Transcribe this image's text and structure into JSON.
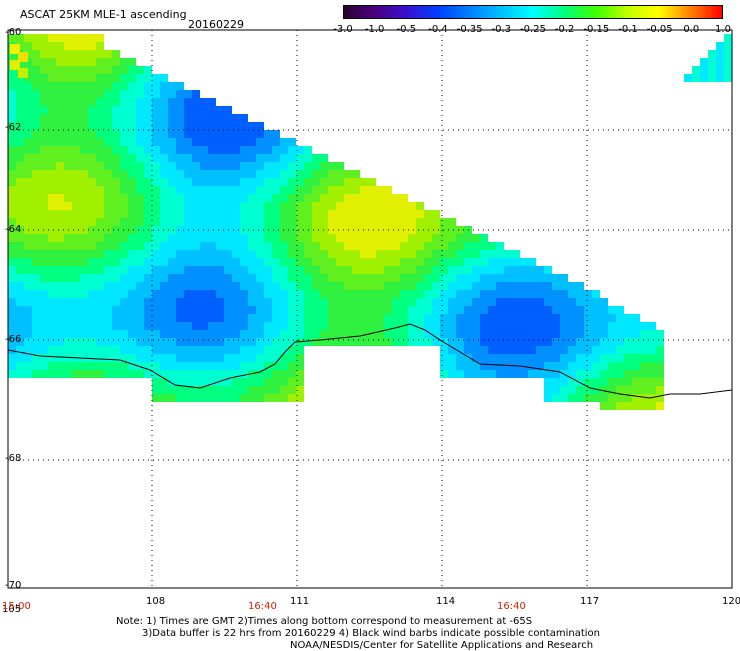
{
  "header": {
    "title": "ASCAT 25KM MLE-1 ascending",
    "date": "20160229"
  },
  "colorbar": {
    "labels": [
      "-3.0",
      "-1.0",
      "-0.5",
      "-0.4",
      "-0.35",
      "-0.3",
      "-0.25",
      "-0.2",
      "-0.15",
      "-0.1",
      "-0.05",
      "0.0",
      "1.0"
    ],
    "colors": [
      "#2a0030",
      "#4a0080",
      "#3a10d0",
      "#0040ff",
      "#0080ff",
      "#00c0ff",
      "#00ffff",
      "#00ff80",
      "#40ff00",
      "#c0ff00",
      "#ffff00",
      "#ff8000",
      "#ff0000"
    ]
  },
  "axes": {
    "lon_ticks": [
      "105",
      "108",
      "111",
      "114",
      "117",
      "120"
    ],
    "lat_ticks": [
      "-60",
      "-62",
      "-64",
      "-66",
      "-68",
      "-70"
    ],
    "time_labels": [
      "15:00",
      "16:40",
      "16:40"
    ]
  },
  "notes": {
    "line1": "Note: 1) Times are GMT 2)Times along bottom correspond to measurement at -65S",
    "line2": "3)Data buffer is 22 hrs from 20160229 4) Black wind barbs indicate possible contamination",
    "line3": "NOAA/NESDIS/Center for Satellite Applications and Research"
  }
}
